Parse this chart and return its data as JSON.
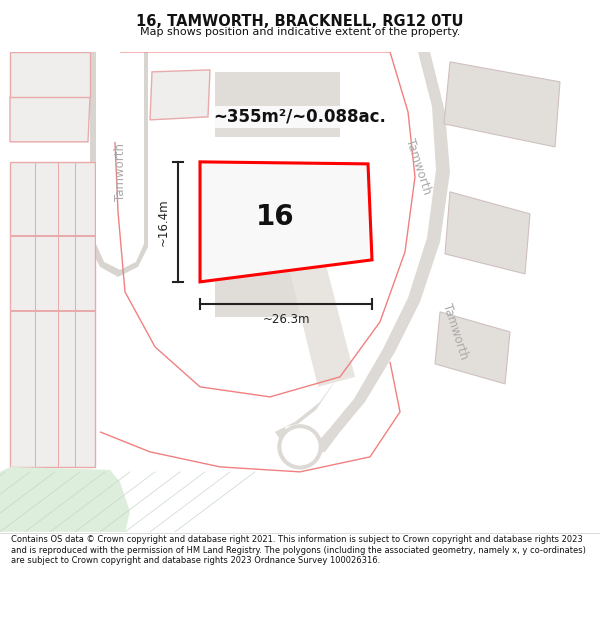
{
  "title": "16, TAMWORTH, BRACKNELL, RG12 0TU",
  "subtitle": "Map shows position and indicative extent of the property.",
  "area_text": "~355m²/~0.088ac.",
  "plot_number": "16",
  "dim_width": "~26.3m",
  "dim_height": "~16.4m",
  "footer": "Contains OS data © Crown copyright and database right 2021. This information is subject to Crown copyright and database rights 2023 and is reproduced with the permission of HM Land Registry. The polygons (including the associated geometry, namely x, y co-ordinates) are subject to Crown copyright and database rights 2023 Ordnance Survey 100026316.",
  "bg_color": "#f5f3f0",
  "road_color": "#e8e4e0",
  "road_label_color": "#b0aaaa",
  "plot_fill": "#efefef",
  "plot_fill_main": "#f8f8f8",
  "plot_edge": "#ff0000",
  "other_plot_fill": "#f0eeec",
  "other_plot_edge": "#e8aaaa",
  "green_area": "#ddeedd",
  "dim_color": "#222222",
  "text_color": "#111111",
  "white": "#ffffff"
}
